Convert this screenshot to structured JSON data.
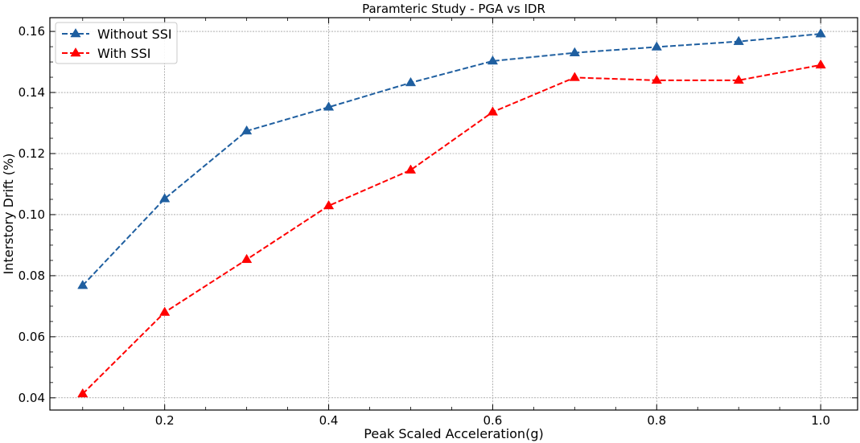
{
  "chart_data": {
    "type": "line",
    "title": "Paramteric Study - PGA vs IDR",
    "xlabel": "Peak Scaled Acceleration(g)",
    "ylabel": "Interstory Drift (%)",
    "x": [
      0.1,
      0.2,
      0.3,
      0.4,
      0.5,
      0.6,
      0.7,
      0.8,
      0.9,
      1.0
    ],
    "xlim": [
      0.06,
      1.045
    ],
    "ylim": [
      0.036,
      0.1645
    ],
    "xticks": [
      0.2,
      0.4,
      0.6,
      0.8,
      1.0
    ],
    "xtick_labels": [
      "0.2",
      "0.4",
      "0.6",
      "0.8",
      "1.0"
    ],
    "yticks": [
      0.04,
      0.06,
      0.08,
      0.1,
      0.12,
      0.14,
      0.16
    ],
    "ytick_labels": [
      "0.04",
      "0.06",
      "0.08",
      "0.10",
      "0.12",
      "0.14",
      "0.16"
    ],
    "grid": true,
    "legend_position": "top-left",
    "series": [
      {
        "name": "Without SSI",
        "color": "#1f5fa0",
        "marker": "triangle-up",
        "linestyle": "dashed",
        "values": [
          0.0768,
          0.1052,
          0.1274,
          0.1352,
          0.1432,
          0.1503,
          0.153,
          0.1549,
          0.1567,
          0.1592
        ]
      },
      {
        "name": "With SSI",
        "color": "#ff0000",
        "marker": "triangle-up",
        "linestyle": "dashed",
        "values": [
          0.0413,
          0.068,
          0.0853,
          0.1029,
          0.1146,
          0.1336,
          0.1449,
          0.144,
          0.144,
          0.149
        ]
      }
    ]
  }
}
